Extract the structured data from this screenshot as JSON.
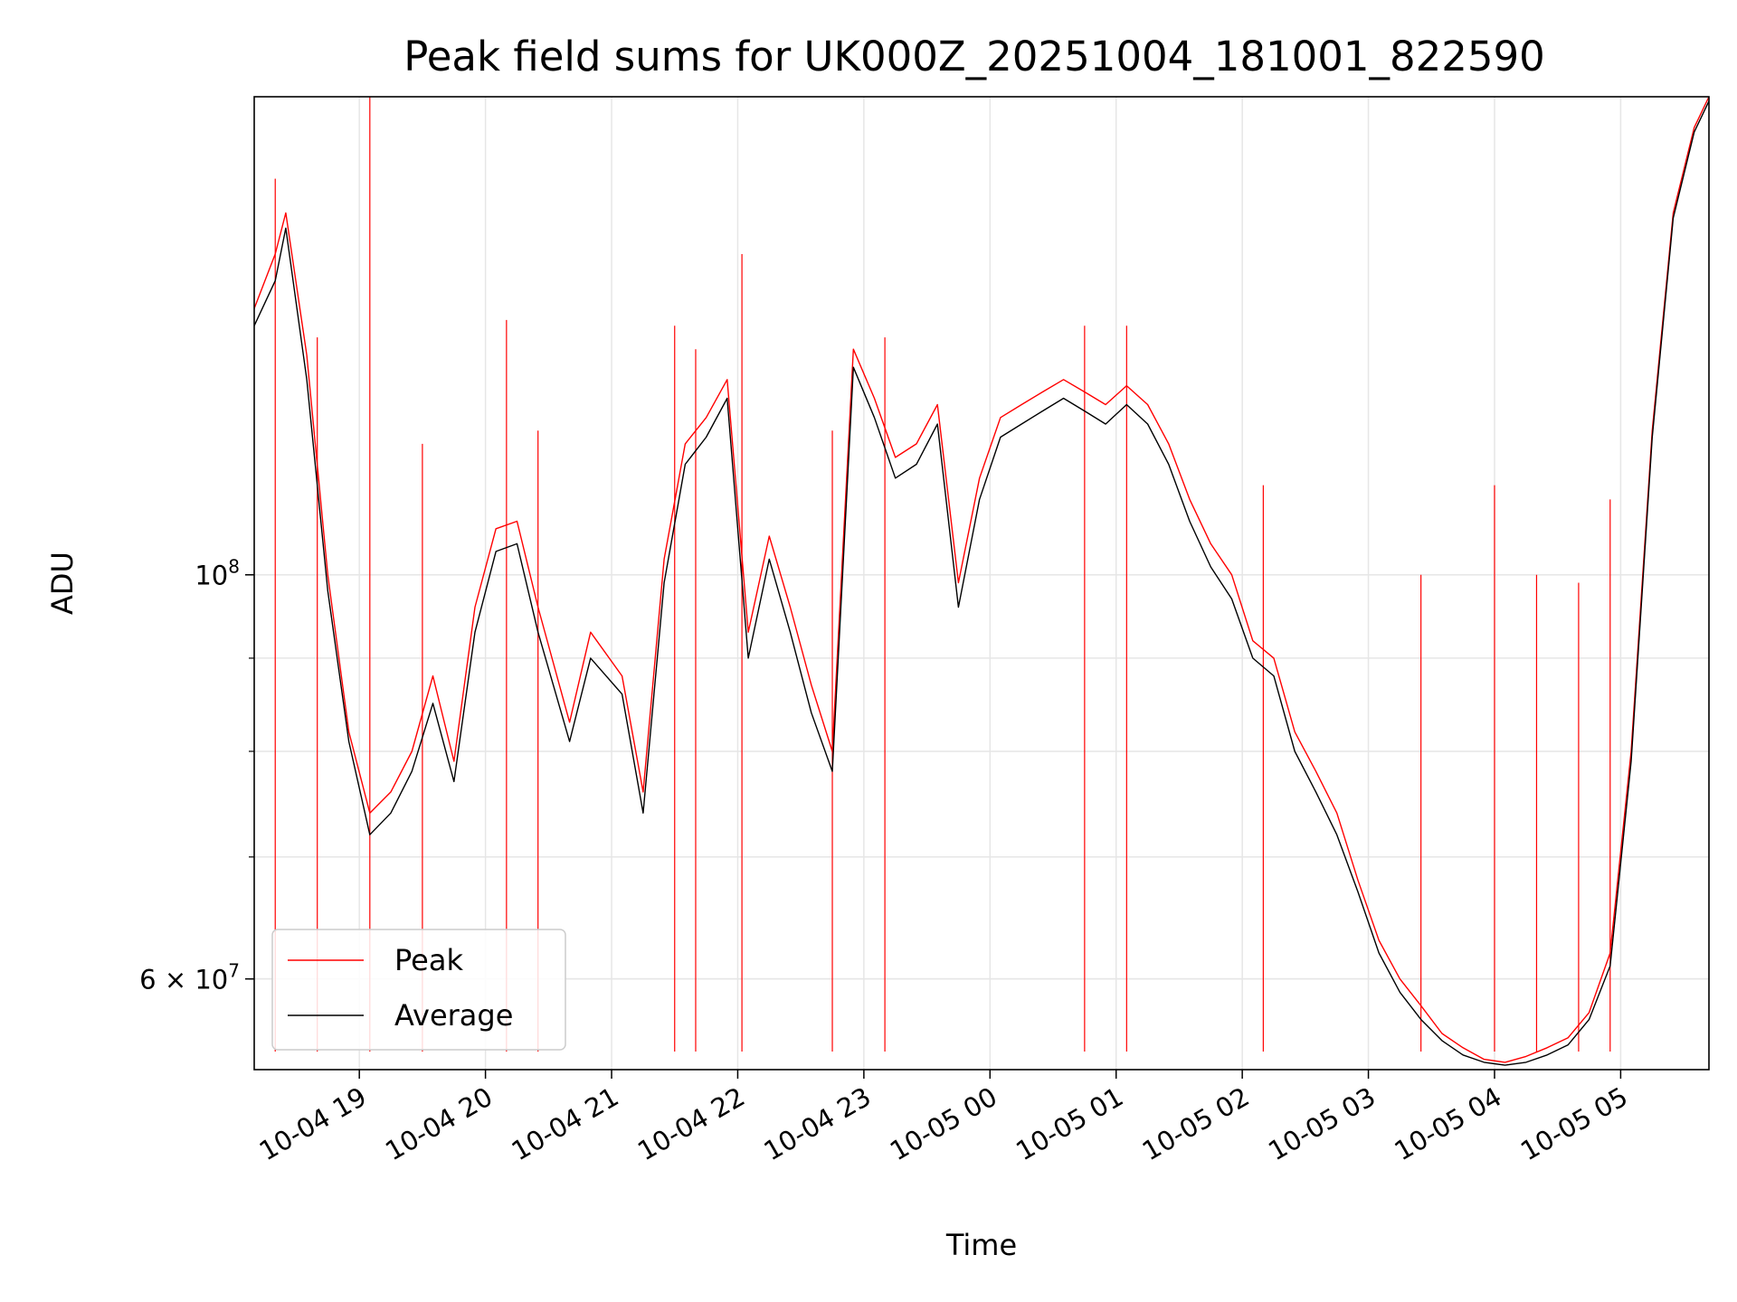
{
  "chart_data": {
    "type": "line",
    "title": "Peak field sums for UK000Z_20251004_181001_822590",
    "xlabel": "Time",
    "ylabel": "ADU",
    "yscale": "log",
    "grid": true,
    "legend_placement": "lower-left",
    "x_range": [
      "2025-10-04 18:10",
      "2025-10-05 05:42"
    ],
    "ylim": [
      53500000,
      183000000
    ],
    "x_tick_labels": [
      "10-04 19",
      "10-04 20",
      "10-04 21",
      "10-04 22",
      "10-04 23",
      "10-05 00",
      "10-05 01",
      "10-05 02",
      "10-05 03",
      "10-05 04",
      "10-05 05"
    ],
    "x_tick_times": [
      "2025-10-04 19:00",
      "2025-10-04 20:00",
      "2025-10-04 21:00",
      "2025-10-04 22:00",
      "2025-10-04 23:00",
      "2025-10-05 00:00",
      "2025-10-05 01:00",
      "2025-10-05 02:00",
      "2025-10-05 03:00",
      "2025-10-05 04:00",
      "2025-10-05 05:00"
    ],
    "y_major_ticks": [
      {
        "value": 100000000,
        "label_base": "10",
        "label_exp": "8"
      },
      {
        "value": 60000000,
        "label_base": "6 × 10",
        "label_exp": "7"
      }
    ],
    "y_minor_ticks": [
      60000000,
      70000000,
      80000000,
      90000000
    ],
    "series": [
      {
        "name": "Peak",
        "color": "#ff0000",
        "x": [
          "2025-10-04 18:10",
          "2025-10-04 18:20",
          "2025-10-04 18:25",
          "2025-10-04 18:35",
          "2025-10-04 18:45",
          "2025-10-04 18:55",
          "2025-10-04 19:05",
          "2025-10-04 19:15",
          "2025-10-04 19:25",
          "2025-10-04 19:35",
          "2025-10-04 19:45",
          "2025-10-04 19:55",
          "2025-10-04 20:05",
          "2025-10-04 20:15",
          "2025-10-04 20:25",
          "2025-10-04 20:40",
          "2025-10-04 20:50",
          "2025-10-04 21:05",
          "2025-10-04 21:15",
          "2025-10-04 21:25",
          "2025-10-04 21:35",
          "2025-10-04 21:45",
          "2025-10-04 21:55",
          "2025-10-04 22:05",
          "2025-10-04 22:15",
          "2025-10-04 22:25",
          "2025-10-04 22:35",
          "2025-10-04 22:45",
          "2025-10-04 22:55",
          "2025-10-04 23:05",
          "2025-10-04 23:15",
          "2025-10-04 23:25",
          "2025-10-04 23:35",
          "2025-10-04 23:45",
          "2025-10-04 23:55",
          "2025-10-05 00:05",
          "2025-10-05 00:15",
          "2025-10-05 00:25",
          "2025-10-05 00:35",
          "2025-10-05 00:45",
          "2025-10-05 00:55",
          "2025-10-05 01:05",
          "2025-10-05 01:15",
          "2025-10-05 01:25",
          "2025-10-05 01:35",
          "2025-10-05 01:45",
          "2025-10-05 01:55",
          "2025-10-05 02:05",
          "2025-10-05 02:15",
          "2025-10-05 02:25",
          "2025-10-05 02:35",
          "2025-10-05 02:45",
          "2025-10-05 02:55",
          "2025-10-05 03:05",
          "2025-10-05 03:15",
          "2025-10-05 03:25",
          "2025-10-05 03:35",
          "2025-10-05 03:45",
          "2025-10-05 03:55",
          "2025-10-05 04:05",
          "2025-10-05 04:15",
          "2025-10-05 04:25",
          "2025-10-05 04:35",
          "2025-10-05 04:45",
          "2025-10-05 04:55",
          "2025-10-05 05:05",
          "2025-10-05 05:15",
          "2025-10-05 05:25",
          "2025-10-05 05:35",
          "2025-10-05 05:42"
        ],
        "values": [
          140000000,
          150000000,
          158000000,
          132000000,
          100000000,
          82000000,
          74000000,
          76000000,
          80000000,
          88000000,
          79000000,
          96000000,
          106000000,
          107000000,
          96000000,
          83000000,
          93000000,
          88000000,
          76000000,
          102000000,
          118000000,
          122000000,
          128000000,
          93000000,
          105000000,
          96000000,
          87000000,
          80000000,
          133000000,
          125000000,
          116000000,
          118000000,
          124000000,
          99000000,
          113000000,
          122000000,
          124000000,
          126000000,
          128000000,
          126000000,
          124000000,
          127000000,
          124000000,
          118000000,
          110000000,
          104000000,
          100000000,
          92000000,
          90000000,
          82000000,
          78000000,
          74000000,
          68000000,
          63000000,
          60000000,
          58000000,
          56000000,
          55000000,
          54200000,
          54000000,
          54400000,
          55000000,
          55700000,
          57500000,
          62000000,
          80000000,
          120000000,
          158000000,
          176000000,
          183000000
        ],
        "spikes": [
          {
            "x": "2025-10-04 18:20",
            "value": 165000000
          },
          {
            "x": "2025-10-04 18:40",
            "value": 135000000
          },
          {
            "x": "2025-10-04 19:05",
            "value": 183000000
          },
          {
            "x": "2025-10-04 19:30",
            "value": 118000000
          },
          {
            "x": "2025-10-04 20:10",
            "value": 138000000
          },
          {
            "x": "2025-10-04 20:25",
            "value": 120000000
          },
          {
            "x": "2025-10-04 21:30",
            "value": 137000000
          },
          {
            "x": "2025-10-04 21:40",
            "value": 133000000
          },
          {
            "x": "2025-10-04 22:02",
            "value": 150000000
          },
          {
            "x": "2025-10-04 22:45",
            "value": 120000000
          },
          {
            "x": "2025-10-04 23:10",
            "value": 135000000
          },
          {
            "x": "2025-10-05 00:45",
            "value": 137000000
          },
          {
            "x": "2025-10-05 01:05",
            "value": 137000000
          },
          {
            "x": "2025-10-05 02:10",
            "value": 112000000
          },
          {
            "x": "2025-10-05 03:25",
            "value": 100000000
          },
          {
            "x": "2025-10-05 04:00",
            "value": 112000000
          },
          {
            "x": "2025-10-05 04:20",
            "value": 100000000
          },
          {
            "x": "2025-10-05 04:40",
            "value": 99000000
          },
          {
            "x": "2025-10-05 04:55",
            "value": 110000000
          }
        ]
      },
      {
        "name": "Average",
        "color": "#000000",
        "x": [
          "2025-10-04 18:10",
          "2025-10-04 18:20",
          "2025-10-04 18:25",
          "2025-10-04 18:35",
          "2025-10-04 18:45",
          "2025-10-04 18:55",
          "2025-10-04 19:05",
          "2025-10-04 19:15",
          "2025-10-04 19:25",
          "2025-10-04 19:35",
          "2025-10-04 19:45",
          "2025-10-04 19:55",
          "2025-10-04 20:05",
          "2025-10-04 20:15",
          "2025-10-04 20:25",
          "2025-10-04 20:40",
          "2025-10-04 20:50",
          "2025-10-04 21:05",
          "2025-10-04 21:15",
          "2025-10-04 21:25",
          "2025-10-04 21:35",
          "2025-10-04 21:45",
          "2025-10-04 21:55",
          "2025-10-04 22:05",
          "2025-10-04 22:15",
          "2025-10-04 22:25",
          "2025-10-04 22:35",
          "2025-10-04 22:45",
          "2025-10-04 22:55",
          "2025-10-04 23:05",
          "2025-10-04 23:15",
          "2025-10-04 23:25",
          "2025-10-04 23:35",
          "2025-10-04 23:45",
          "2025-10-04 23:55",
          "2025-10-05 00:05",
          "2025-10-05 00:15",
          "2025-10-05 00:25",
          "2025-10-05 00:35",
          "2025-10-05 00:45",
          "2025-10-05 00:55",
          "2025-10-05 01:05",
          "2025-10-05 01:15",
          "2025-10-05 01:25",
          "2025-10-05 01:35",
          "2025-10-05 01:45",
          "2025-10-05 01:55",
          "2025-10-05 02:05",
          "2025-10-05 02:15",
          "2025-10-05 02:25",
          "2025-10-05 02:35",
          "2025-10-05 02:45",
          "2025-10-05 02:55",
          "2025-10-05 03:05",
          "2025-10-05 03:15",
          "2025-10-05 03:25",
          "2025-10-05 03:35",
          "2025-10-05 03:45",
          "2025-10-05 03:55",
          "2025-10-05 04:05",
          "2025-10-05 04:15",
          "2025-10-05 04:25",
          "2025-10-05 04:35",
          "2025-10-05 04:45",
          "2025-10-05 04:55",
          "2025-10-05 05:05",
          "2025-10-05 05:15",
          "2025-10-05 05:25",
          "2025-10-05 05:35",
          "2025-10-05 05:42"
        ],
        "values": [
          137000000,
          145000000,
          155000000,
          128000000,
          98000000,
          81000000,
          72000000,
          74000000,
          78000000,
          85000000,
          77000000,
          93000000,
          103000000,
          104000000,
          93000000,
          81000000,
          90000000,
          86000000,
          74000000,
          99000000,
          115000000,
          119000000,
          125000000,
          90000000,
          102000000,
          93000000,
          84000000,
          78000000,
          130000000,
          122000000,
          113000000,
          115000000,
          121000000,
          96000000,
          110000000,
          119000000,
          121000000,
          123000000,
          125000000,
          123000000,
          121000000,
          124000000,
          121000000,
          115000000,
          107000000,
          101000000,
          97000000,
          90000000,
          88000000,
          80000000,
          76000000,
          72000000,
          67000000,
          62000000,
          59000000,
          57000000,
          55500000,
          54500000,
          54000000,
          53800000,
          54000000,
          54500000,
          55200000,
          57000000,
          61000000,
          79000000,
          119000000,
          157000000,
          175000000,
          182000000
        ]
      }
    ]
  }
}
